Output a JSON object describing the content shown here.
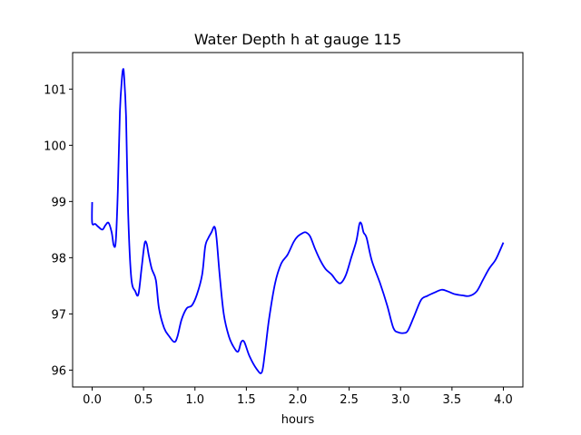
{
  "chart_data": {
    "type": "line",
    "title": "Water Depth h at gauge 115",
    "xlabel": "hours",
    "ylabel": "",
    "xlim": [
      -0.19,
      4.19
    ],
    "ylim": [
      95.7,
      101.65
    ],
    "grid": false,
    "x_ticks": [
      0.0,
      0.5,
      1.0,
      1.5,
      2.0,
      2.5,
      3.0,
      3.5,
      4.0
    ],
    "x_tick_labels": [
      "0.0",
      "0.5",
      "1.0",
      "1.5",
      "2.0",
      "2.5",
      "3.0",
      "3.5",
      "4.0"
    ],
    "y_ticks": [
      96,
      97,
      98,
      99,
      100,
      101
    ],
    "y_tick_labels": [
      "96",
      "97",
      "98",
      "99",
      "100",
      "101"
    ],
    "series": [
      {
        "color": "#0000ff",
        "x": [
          0.0,
          0.0,
          0.03,
          0.06,
          0.1,
          0.13,
          0.16,
          0.19,
          0.21,
          0.23,
          0.25,
          0.27,
          0.29,
          0.3,
          0.31,
          0.33,
          0.35,
          0.38,
          0.42,
          0.45,
          0.48,
          0.51,
          0.53,
          0.55,
          0.58,
          0.62,
          0.65,
          0.7,
          0.75,
          0.8,
          0.83,
          0.87,
          0.92,
          0.97,
          1.02,
          1.07,
          1.1,
          1.13,
          1.16,
          1.19,
          1.21,
          1.24,
          1.28,
          1.33,
          1.38,
          1.42,
          1.45,
          1.48,
          1.53,
          1.6,
          1.65,
          1.68,
          1.72,
          1.78,
          1.84,
          1.9,
          1.96,
          2.0,
          2.05,
          2.08,
          2.12,
          2.17,
          2.22,
          2.27,
          2.33,
          2.38,
          2.42,
          2.47,
          2.52,
          2.57,
          2.6,
          2.62,
          2.64,
          2.67,
          2.72,
          2.8,
          2.87,
          2.93,
          2.98,
          3.03,
          3.07,
          3.13,
          3.2,
          3.26,
          3.33,
          3.4,
          3.46,
          3.53,
          3.6,
          3.67,
          3.74,
          3.8,
          3.86,
          3.92,
          3.96,
          4.0
        ],
        "y": [
          98.99,
          98.62,
          98.6,
          98.55,
          98.5,
          98.58,
          98.62,
          98.45,
          98.22,
          98.3,
          99.2,
          100.6,
          101.2,
          101.35,
          101.25,
          100.5,
          98.8,
          97.65,
          97.4,
          97.35,
          97.8,
          98.25,
          98.25,
          98.05,
          97.8,
          97.6,
          97.1,
          96.75,
          96.6,
          96.5,
          96.6,
          96.9,
          97.1,
          97.15,
          97.35,
          97.7,
          98.2,
          98.35,
          98.45,
          98.55,
          98.35,
          97.7,
          97.0,
          96.6,
          96.4,
          96.33,
          96.5,
          96.5,
          96.25,
          96.02,
          95.96,
          96.3,
          96.9,
          97.55,
          97.9,
          98.05,
          98.28,
          98.38,
          98.44,
          98.45,
          98.38,
          98.15,
          97.95,
          97.8,
          97.7,
          97.58,
          97.55,
          97.7,
          98.0,
          98.3,
          98.6,
          98.6,
          98.45,
          98.35,
          97.95,
          97.55,
          97.15,
          96.75,
          96.67,
          96.66,
          96.7,
          96.95,
          97.25,
          97.32,
          97.38,
          97.43,
          97.4,
          97.35,
          97.33,
          97.32,
          97.4,
          97.6,
          97.8,
          97.95,
          98.1,
          98.27
        ]
      }
    ]
  }
}
